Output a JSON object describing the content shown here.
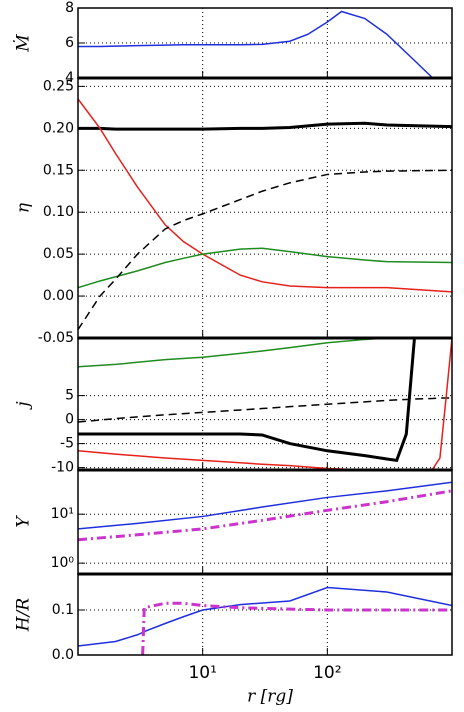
{
  "chart_data": [
    {
      "type": "line",
      "ylabel": "Ṁ",
      "xlim": [
        1,
        1000
      ],
      "xticks": [
        10,
        100
      ],
      "ylim": [
        4,
        8
      ],
      "yticks": [
        4,
        6,
        8
      ],
      "grid": true,
      "x": [
        1,
        1.5,
        2,
        3,
        5,
        7,
        10,
        15,
        20,
        30,
        50,
        70,
        100,
        130,
        200,
        300,
        500,
        700,
        1000
      ],
      "series": [
        {
          "color": "#1f2fe0",
          "linestyle": "solid",
          "linewidth": 1.5,
          "values": [
            5.8,
            5.8,
            5.82,
            5.85,
            5.88,
            5.9,
            5.9,
            5.9,
            5.9,
            5.92,
            6.1,
            6.5,
            7.2,
            7.8,
            7.4,
            6.5,
            5.0,
            4.0,
            null
          ]
        }
      ]
    },
    {
      "type": "line",
      "ylabel": "η",
      "xlim": [
        1,
        1000
      ],
      "xticks": [
        10,
        100
      ],
      "ylim": [
        -0.05,
        0.26
      ],
      "yticks": [
        {
          "value": -0.05,
          "label": "-0.05"
        },
        {
          "value": 0,
          "label": "0.00"
        },
        0.05,
        {
          "value": 0.1,
          "label": "0.10"
        },
        0.15,
        {
          "value": 0.2,
          "label": "0.20"
        },
        0.25
      ],
      "grid": true,
      "x": [
        1,
        1.5,
        2,
        3,
        5,
        7,
        10,
        20,
        30,
        50,
        100,
        200,
        300,
        1000
      ],
      "series": [
        {
          "color": "#000000",
          "linestyle": "solid",
          "linewidth": 3,
          "values": [
            0.2,
            0.2,
            0.199,
            0.199,
            0.199,
            0.199,
            0.199,
            0.2,
            0.2,
            0.201,
            0.205,
            0.206,
            0.204,
            0.202
          ]
        },
        {
          "color": "#e8201a",
          "linestyle": "solid",
          "linewidth": 1.5,
          "values": [
            0.235,
            0.2,
            0.17,
            0.13,
            0.085,
            0.065,
            0.05,
            0.025,
            0.017,
            0.012,
            0.01,
            0.01,
            0.01,
            0.005
          ]
        },
        {
          "color": "#1e8c1e",
          "linestyle": "solid",
          "linewidth": 1.5,
          "values": [
            0.01,
            0.018,
            0.023,
            0.03,
            0.04,
            0.045,
            0.05,
            0.056,
            0.057,
            0.053,
            0.047,
            0.043,
            0.041,
            0.04
          ]
        },
        {
          "color": "#000000",
          "linestyle": "dashed",
          "linewidth": 1.5,
          "values": [
            -0.04,
            0.0,
            0.02,
            0.05,
            0.08,
            0.09,
            0.098,
            0.115,
            0.125,
            0.135,
            0.145,
            0.148,
            0.149,
            0.15
          ]
        }
      ]
    },
    {
      "type": "line",
      "ylabel": "j",
      "xlim": [
        1,
        1000
      ],
      "xticks": [
        10,
        100
      ],
      "ylim": [
        -10.5,
        17
      ],
      "yticks": [
        -10,
        -5,
        0,
        5
      ],
      "grid": true,
      "x": [
        1,
        2,
        5,
        10,
        20,
        30,
        50,
        100,
        200,
        300,
        360,
        430,
        500,
        700,
        800,
        900,
        1000
      ],
      "series": [
        {
          "color": "#1e8c1e",
          "linestyle": "solid",
          "linewidth": 1.5,
          "values": [
            11,
            11.5,
            12.5,
            13,
            13.8,
            14.3,
            15,
            16,
            16.7,
            17,
            17,
            17,
            17,
            17,
            17,
            17,
            17
          ]
        },
        {
          "color": "#000000",
          "linestyle": "dashed",
          "linewidth": 1.5,
          "values": [
            -0.5,
            0.2,
            1,
            1.5,
            2,
            2.3,
            2.7,
            3.2,
            3.7,
            4,
            4.1,
            4.2,
            4.3,
            4.4,
            4.5,
            4.5,
            4.5
          ]
        },
        {
          "color": "#000000",
          "linestyle": "solid",
          "linewidth": 3,
          "values": [
            -3,
            -3,
            -3,
            -3,
            -3,
            -3.2,
            -5,
            -6.5,
            -7.5,
            -8.2,
            -8.5,
            -3,
            17,
            null,
            null,
            null,
            null
          ]
        },
        {
          "color": "#e8201a",
          "linestyle": "solid",
          "linewidth": 1.5,
          "values": [
            -6.5,
            -7.2,
            -8,
            -8.5,
            -9,
            -9.3,
            -9.6,
            -10.2,
            -10.5,
            -10.5,
            -10.5,
            -10.5,
            -10.5,
            -10.3,
            -8,
            5,
            17
          ]
        }
      ]
    },
    {
      "type": "line",
      "ylabel": "Υ",
      "log_y": true,
      "xlim": [
        1,
        1000
      ],
      "xticks": [
        10,
        100
      ],
      "ylim": [
        0.6,
        80
      ],
      "yticks": [
        {
          "value": 1,
          "label": "10⁰"
        },
        {
          "value": 10,
          "label": "10¹"
        }
      ],
      "grid": true,
      "x": [
        1,
        3,
        10,
        30,
        100,
        300,
        1000
      ],
      "series": [
        {
          "color": "#1f2fe0",
          "linestyle": "solid",
          "linewidth": 1.5,
          "values": [
            5,
            6.5,
            9,
            14,
            22,
            30,
            45
          ]
        },
        {
          "color": "#cc33cc",
          "linestyle": "dashdot",
          "linewidth": 3,
          "values": [
            3,
            3.8,
            5,
            7.5,
            12,
            18,
            30
          ]
        }
      ]
    },
    {
      "type": "line",
      "ylabel": "H/R",
      "xlabel": "r [rg]",
      "xlim": [
        1,
        1000
      ],
      "xticks": [
        {
          "value": 10,
          "label": "10¹"
        },
        {
          "value": 100,
          "label": "10²"
        }
      ],
      "ylim": [
        0,
        0.18
      ],
      "yticks": [
        {
          "value": 0,
          "label": "0.0"
        },
        0.1
      ],
      "grid": true,
      "x": [
        1,
        2,
        3,
        3.3,
        3.4,
        5,
        7,
        10,
        20,
        50,
        100,
        300,
        1000
      ],
      "series": [
        {
          "color": "#1f2fe0",
          "linestyle": "solid",
          "linewidth": 1.5,
          "values": [
            0.02,
            0.03,
            0.045,
            0.05,
            0.052,
            0.07,
            0.085,
            0.1,
            0.112,
            0.12,
            0.15,
            0.14,
            0.11
          ]
        },
        {
          "color": "#cc33cc",
          "linestyle": "dashdot",
          "linewidth": 3,
          "values": [
            null,
            null,
            null,
            0,
            0.105,
            0.115,
            0.115,
            0.11,
            0.105,
            0.102,
            0.1,
            0.1,
            0.1
          ]
        }
      ]
    }
  ]
}
